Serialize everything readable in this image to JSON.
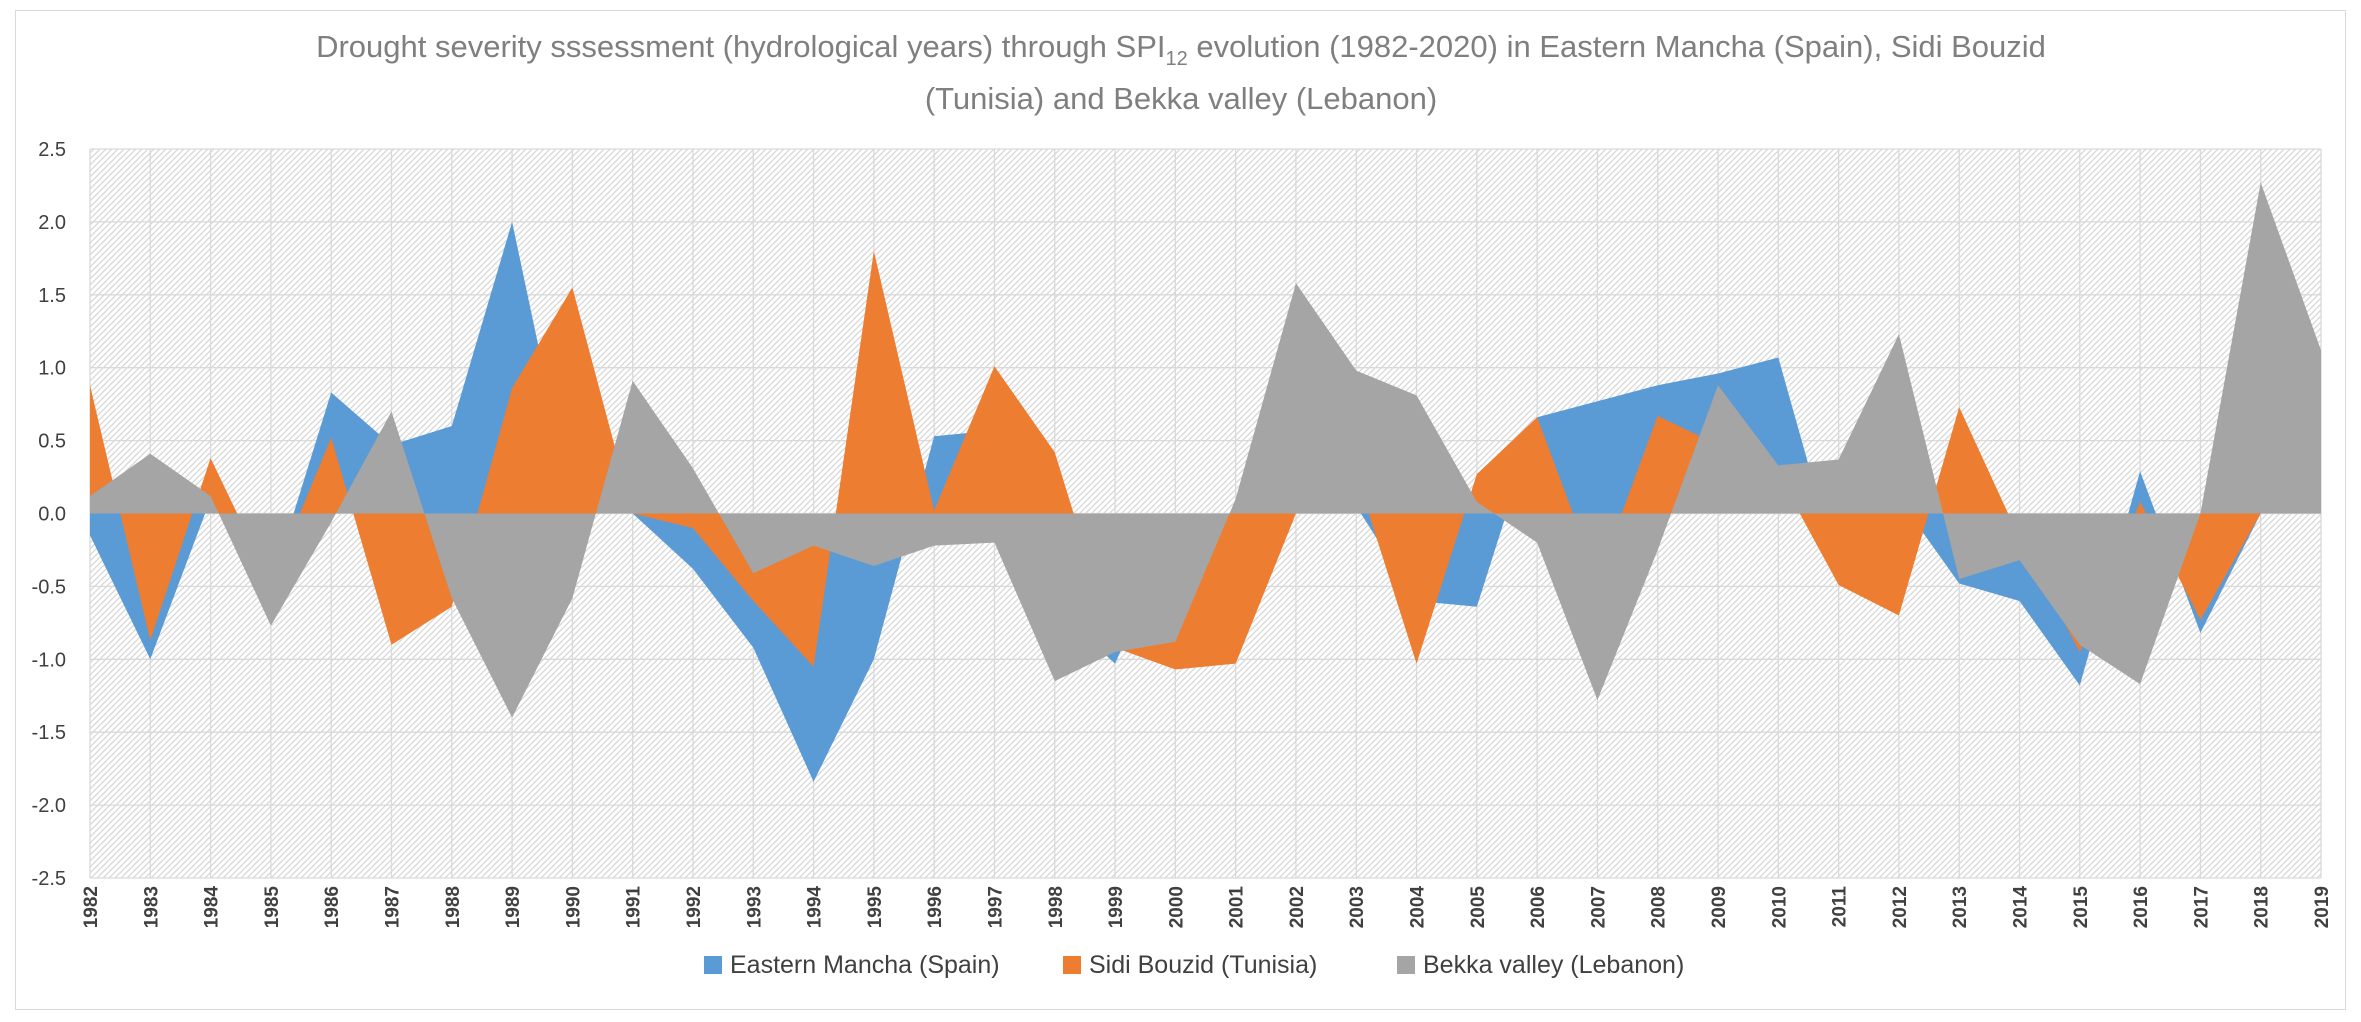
{
  "chart_data": {
    "type": "area",
    "title_line1_pre": "Drought severity sssessment (hydrological years) through SPI",
    "title_subscript": "12",
    "title_line1_post": " evolution (1982-2020) in Eastern Mancha (Spain), Sidi Bouzid",
    "title_line2": "(Tunisia) and Bekka valley (Lebanon)",
    "xlabel": "",
    "ylabel": "",
    "ylim": [
      -2.5,
      2.5
    ],
    "yticks": [
      2.5,
      2.0,
      1.5,
      1.0,
      0.5,
      0.0,
      -0.5,
      -1.0,
      -1.5,
      -2.0,
      -2.5
    ],
    "ytick_labels": [
      "2.5",
      "2.0",
      "1.5",
      "1.0",
      "0.5",
      "0.0",
      "-0.5",
      "-1.0",
      "-1.5",
      "-2.0",
      "-2.5"
    ],
    "categories": [
      "1982",
      "1983",
      "1984",
      "1985",
      "1986",
      "1987",
      "1988",
      "1989",
      "1990",
      "1991",
      "1992",
      "1993",
      "1994",
      "1995",
      "1996",
      "1997",
      "1998",
      "1999",
      "2000",
      "2001",
      "2002",
      "2003",
      "2004",
      "2005",
      "2006",
      "2007",
      "2008",
      "2009",
      "2010",
      "2011",
      "2012",
      "2013",
      "2014",
      "2015",
      "2016",
      "2017",
      "2018",
      "2019"
    ],
    "grid": true,
    "legend_position": "bottom",
    "series": [
      {
        "name": "Eastern Mancha (Spain)",
        "color": "#5b9bd5",
        "values": [
          -0.15,
          -1.0,
          0.1,
          -0.5,
          0.83,
          0.47,
          0.6,
          2.0,
          0.05,
          0.0,
          -0.38,
          -0.92,
          -1.84,
          -1.0,
          0.53,
          0.57,
          -0.65,
          -1.03,
          -0.1,
          -0.12,
          0.0,
          0.05,
          -0.6,
          -0.64,
          0.66,
          0.77,
          0.88,
          0.96,
          1.07,
          -0.4,
          0.1,
          -0.48,
          -0.6,
          -1.18,
          0.29,
          -0.82,
          0.0,
          0.0
        ]
      },
      {
        "name": "Sidi Bouzid (Tunisia)",
        "color": "#ed7d31",
        "values": [
          0.88,
          -0.87,
          0.38,
          -0.48,
          0.52,
          -0.9,
          -0.64,
          0.86,
          1.55,
          0.0,
          -0.1,
          -0.6,
          -1.05,
          1.8,
          0.02,
          1.01,
          0.42,
          -0.92,
          -1.07,
          -1.03,
          0.0,
          0.27,
          -1.03,
          0.27,
          0.66,
          -0.45,
          0.67,
          0.47,
          0.27,
          -0.49,
          -0.7,
          0.73,
          -0.17,
          -0.95,
          0.08,
          -0.73,
          0.0,
          0.0
        ]
      },
      {
        "name": "Bekka valley (Lebanon)",
        "color": "#a5a5a5",
        "values": [
          0.12,
          0.41,
          0.12,
          -0.77,
          -0.06,
          0.7,
          -0.58,
          -1.4,
          -0.58,
          0.91,
          0.31,
          -0.41,
          -0.22,
          -0.36,
          -0.22,
          -0.2,
          -1.15,
          -0.95,
          -0.88,
          0.1,
          1.58,
          0.98,
          0.81,
          0.08,
          -0.2,
          -1.28,
          -0.25,
          0.88,
          0.33,
          0.37,
          1.23,
          -0.45,
          -0.32,
          -0.9,
          -1.17,
          0.0,
          2.27,
          1.12
        ]
      }
    ]
  }
}
